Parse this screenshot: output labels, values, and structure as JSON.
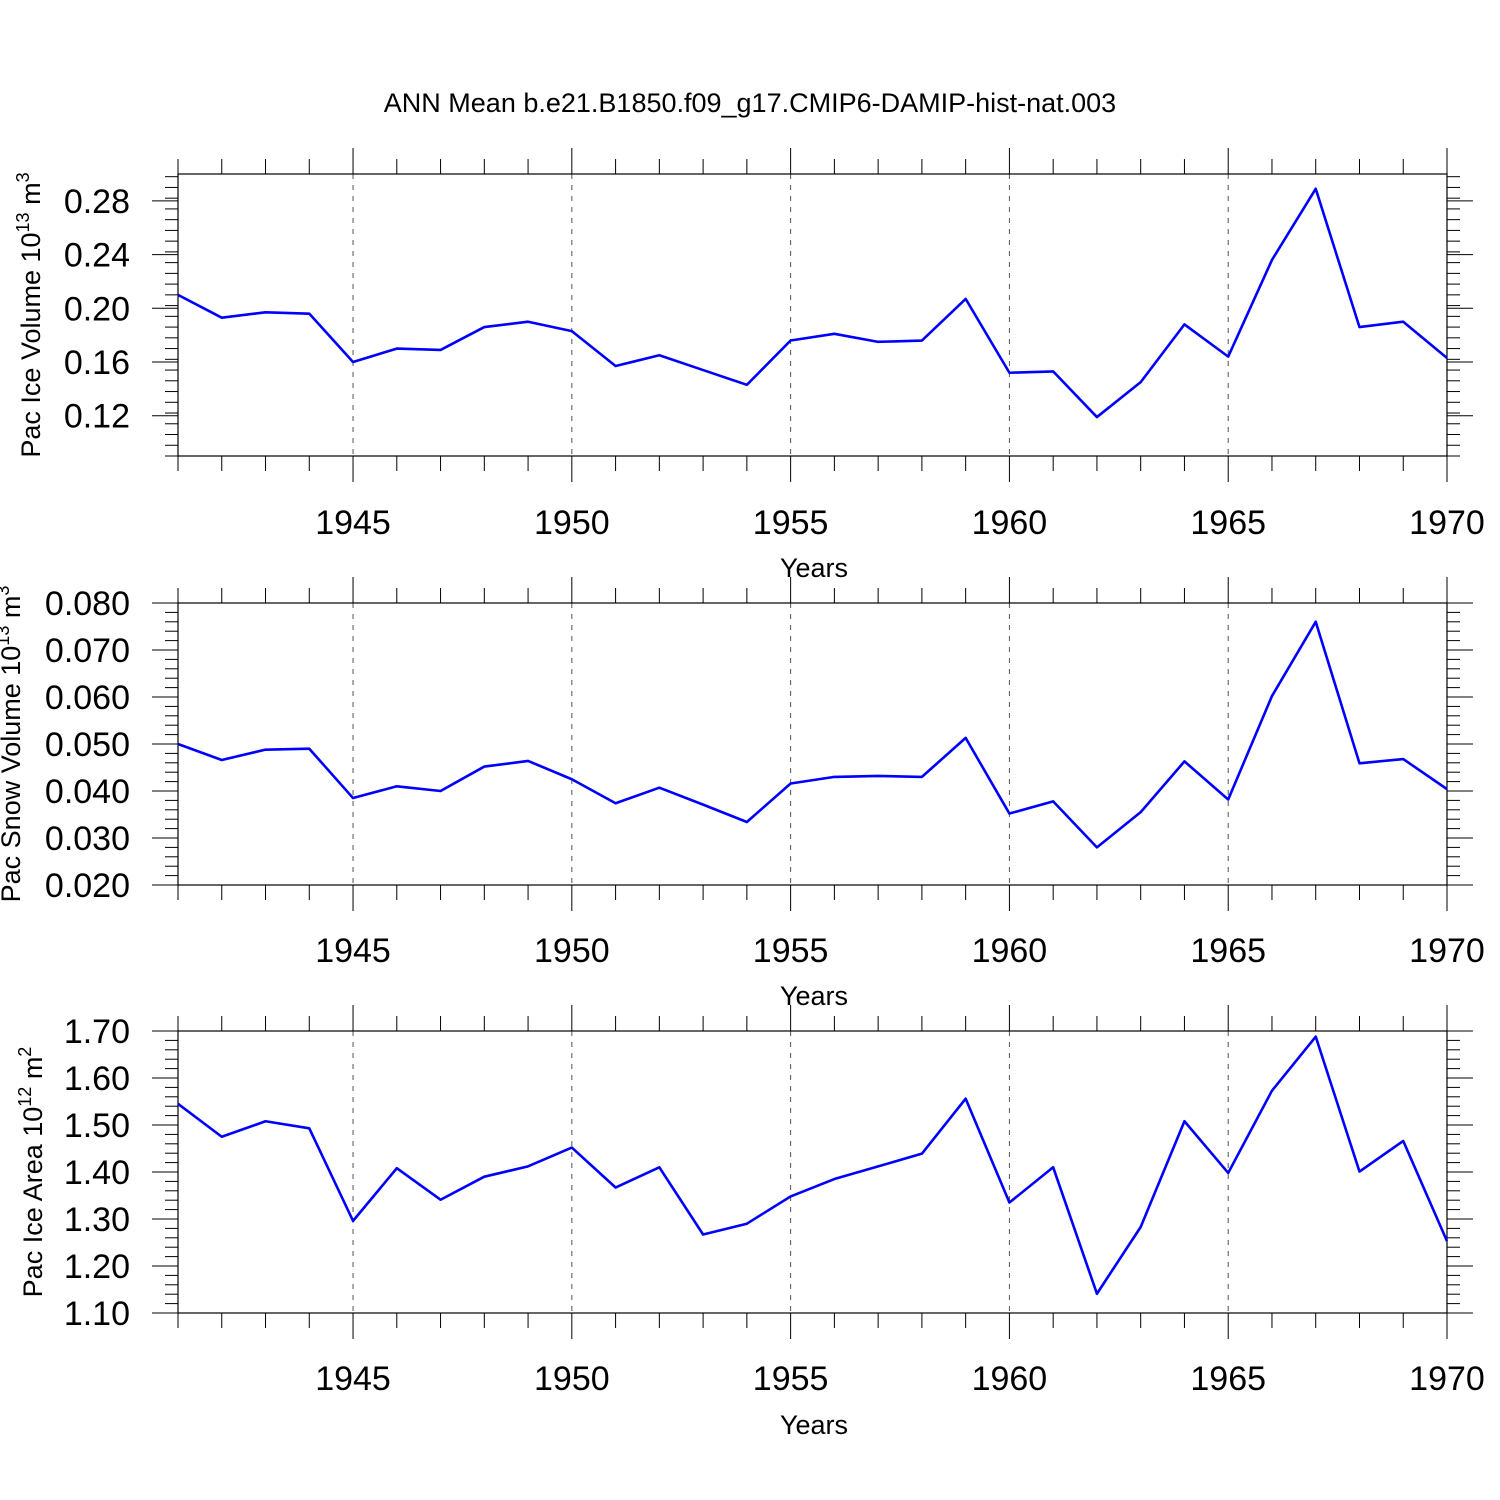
{
  "title": "ANN Mean b.e21.B1850.f09_g17.CMIP6-DAMIP-hist-nat.003",
  "colors": {
    "series": "#0000ff",
    "axes": "#000000",
    "grid": "#555555"
  },
  "chart_data": [
    {
      "type": "line",
      "title": "ANN Mean b.e21.B1850.f09_g17.CMIP6-DAMIP-hist-nat.003",
      "xlabel": "Years",
      "ylabel": "Pac Ice Volume 10",
      "ylabel_sup": "13",
      "ylabel_unit": " m",
      "ylabel_unit_sup": "3",
      "xlim": [
        1941,
        1970
      ],
      "ylim": [
        0.09,
        0.3
      ],
      "xticks": [
        1945,
        1950,
        1955,
        1960,
        1965,
        1970
      ],
      "xtick_labels": [
        "1945",
        "1950",
        "1955",
        "1960",
        "1965",
        "1970"
      ],
      "yticks": [
        0.12,
        0.16,
        0.2,
        0.24,
        0.28
      ],
      "ytick_labels": [
        "0.12",
        "0.16",
        "0.20",
        "0.24",
        "0.28"
      ],
      "yminor_step": 0.008,
      "grid": "vertical dashed at major x ticks",
      "x": [
        1941,
        1942,
        1943,
        1944,
        1945,
        1946,
        1947,
        1948,
        1949,
        1950,
        1951,
        1952,
        1953,
        1954,
        1955,
        1956,
        1957,
        1958,
        1959,
        1960,
        1961,
        1962,
        1963,
        1964,
        1965,
        1966,
        1967,
        1968,
        1969,
        1970
      ],
      "values": [
        0.21,
        0.193,
        0.197,
        0.196,
        0.16,
        0.17,
        0.169,
        0.186,
        0.19,
        0.183,
        0.157,
        0.165,
        0.154,
        0.143,
        0.176,
        0.181,
        0.175,
        0.176,
        0.207,
        0.152,
        0.153,
        0.119,
        0.145,
        0.188,
        0.164,
        0.236,
        0.289,
        0.186,
        0.19,
        0.163
      ]
    },
    {
      "type": "line",
      "xlabel": "Years",
      "ylabel": "Pac Snow Volume 10",
      "ylabel_sup": "13",
      "ylabel_unit": " m",
      "ylabel_unit_sup": "3",
      "xlim": [
        1941,
        1970
      ],
      "ylim": [
        0.02,
        0.08
      ],
      "xticks": [
        1945,
        1950,
        1955,
        1960,
        1965,
        1970
      ],
      "xtick_labels": [
        "1945",
        "1950",
        "1955",
        "1960",
        "1965",
        "1970"
      ],
      "yticks": [
        0.02,
        0.03,
        0.04,
        0.05,
        0.06,
        0.07,
        0.08
      ],
      "ytick_labels": [
        "0.020",
        "0.030",
        "0.040",
        "0.050",
        "0.060",
        "0.070",
        "0.080"
      ],
      "yminor_step": 0.002,
      "grid": "vertical dashed at major x ticks",
      "x": [
        1941,
        1942,
        1943,
        1944,
        1945,
        1946,
        1947,
        1948,
        1949,
        1950,
        1951,
        1952,
        1953,
        1954,
        1955,
        1956,
        1957,
        1958,
        1959,
        1960,
        1961,
        1962,
        1963,
        1964,
        1965,
        1966,
        1967,
        1968,
        1969,
        1970
      ],
      "values": [
        0.05,
        0.0466,
        0.0488,
        0.049,
        0.0385,
        0.041,
        0.04,
        0.0452,
        0.0464,
        0.0425,
        0.0374,
        0.0407,
        0.0371,
        0.0334,
        0.0416,
        0.043,
        0.0432,
        0.043,
        0.0513,
        0.0352,
        0.0378,
        0.028,
        0.0355,
        0.0463,
        0.0382,
        0.0602,
        0.076,
        0.0459,
        0.0468,
        0.0404
      ]
    },
    {
      "type": "line",
      "xlabel": "Years",
      "ylabel": "Pac Ice Area 10",
      "ylabel_sup": "12",
      "ylabel_unit": " m",
      "ylabel_unit_sup": "2",
      "xlim": [
        1941,
        1970
      ],
      "ylim": [
        1.1,
        1.7
      ],
      "xticks": [
        1945,
        1950,
        1955,
        1960,
        1965,
        1970
      ],
      "xtick_labels": [
        "1945",
        "1950",
        "1955",
        "1960",
        "1965",
        "1970"
      ],
      "yticks": [
        1.1,
        1.2,
        1.3,
        1.4,
        1.5,
        1.6,
        1.7
      ],
      "ytick_labels": [
        "1.10",
        "1.20",
        "1.30",
        "1.40",
        "1.50",
        "1.60",
        "1.70"
      ],
      "yminor_step": 0.02,
      "grid": "vertical dashed at major x ticks",
      "x": [
        1941,
        1942,
        1943,
        1944,
        1945,
        1946,
        1947,
        1948,
        1949,
        1950,
        1951,
        1952,
        1953,
        1954,
        1955,
        1956,
        1957,
        1958,
        1959,
        1960,
        1961,
        1962,
        1963,
        1964,
        1965,
        1966,
        1967,
        1968,
        1969,
        1970
      ],
      "values": [
        1.545,
        1.475,
        1.508,
        1.493,
        1.296,
        1.408,
        1.341,
        1.39,
        1.412,
        1.452,
        1.367,
        1.41,
        1.267,
        1.29,
        1.348,
        1.385,
        1.412,
        1.439,
        1.556,
        1.335,
        1.41,
        1.141,
        1.283,
        1.508,
        1.398,
        1.573,
        1.688,
        1.401,
        1.466,
        1.253
      ]
    }
  ]
}
